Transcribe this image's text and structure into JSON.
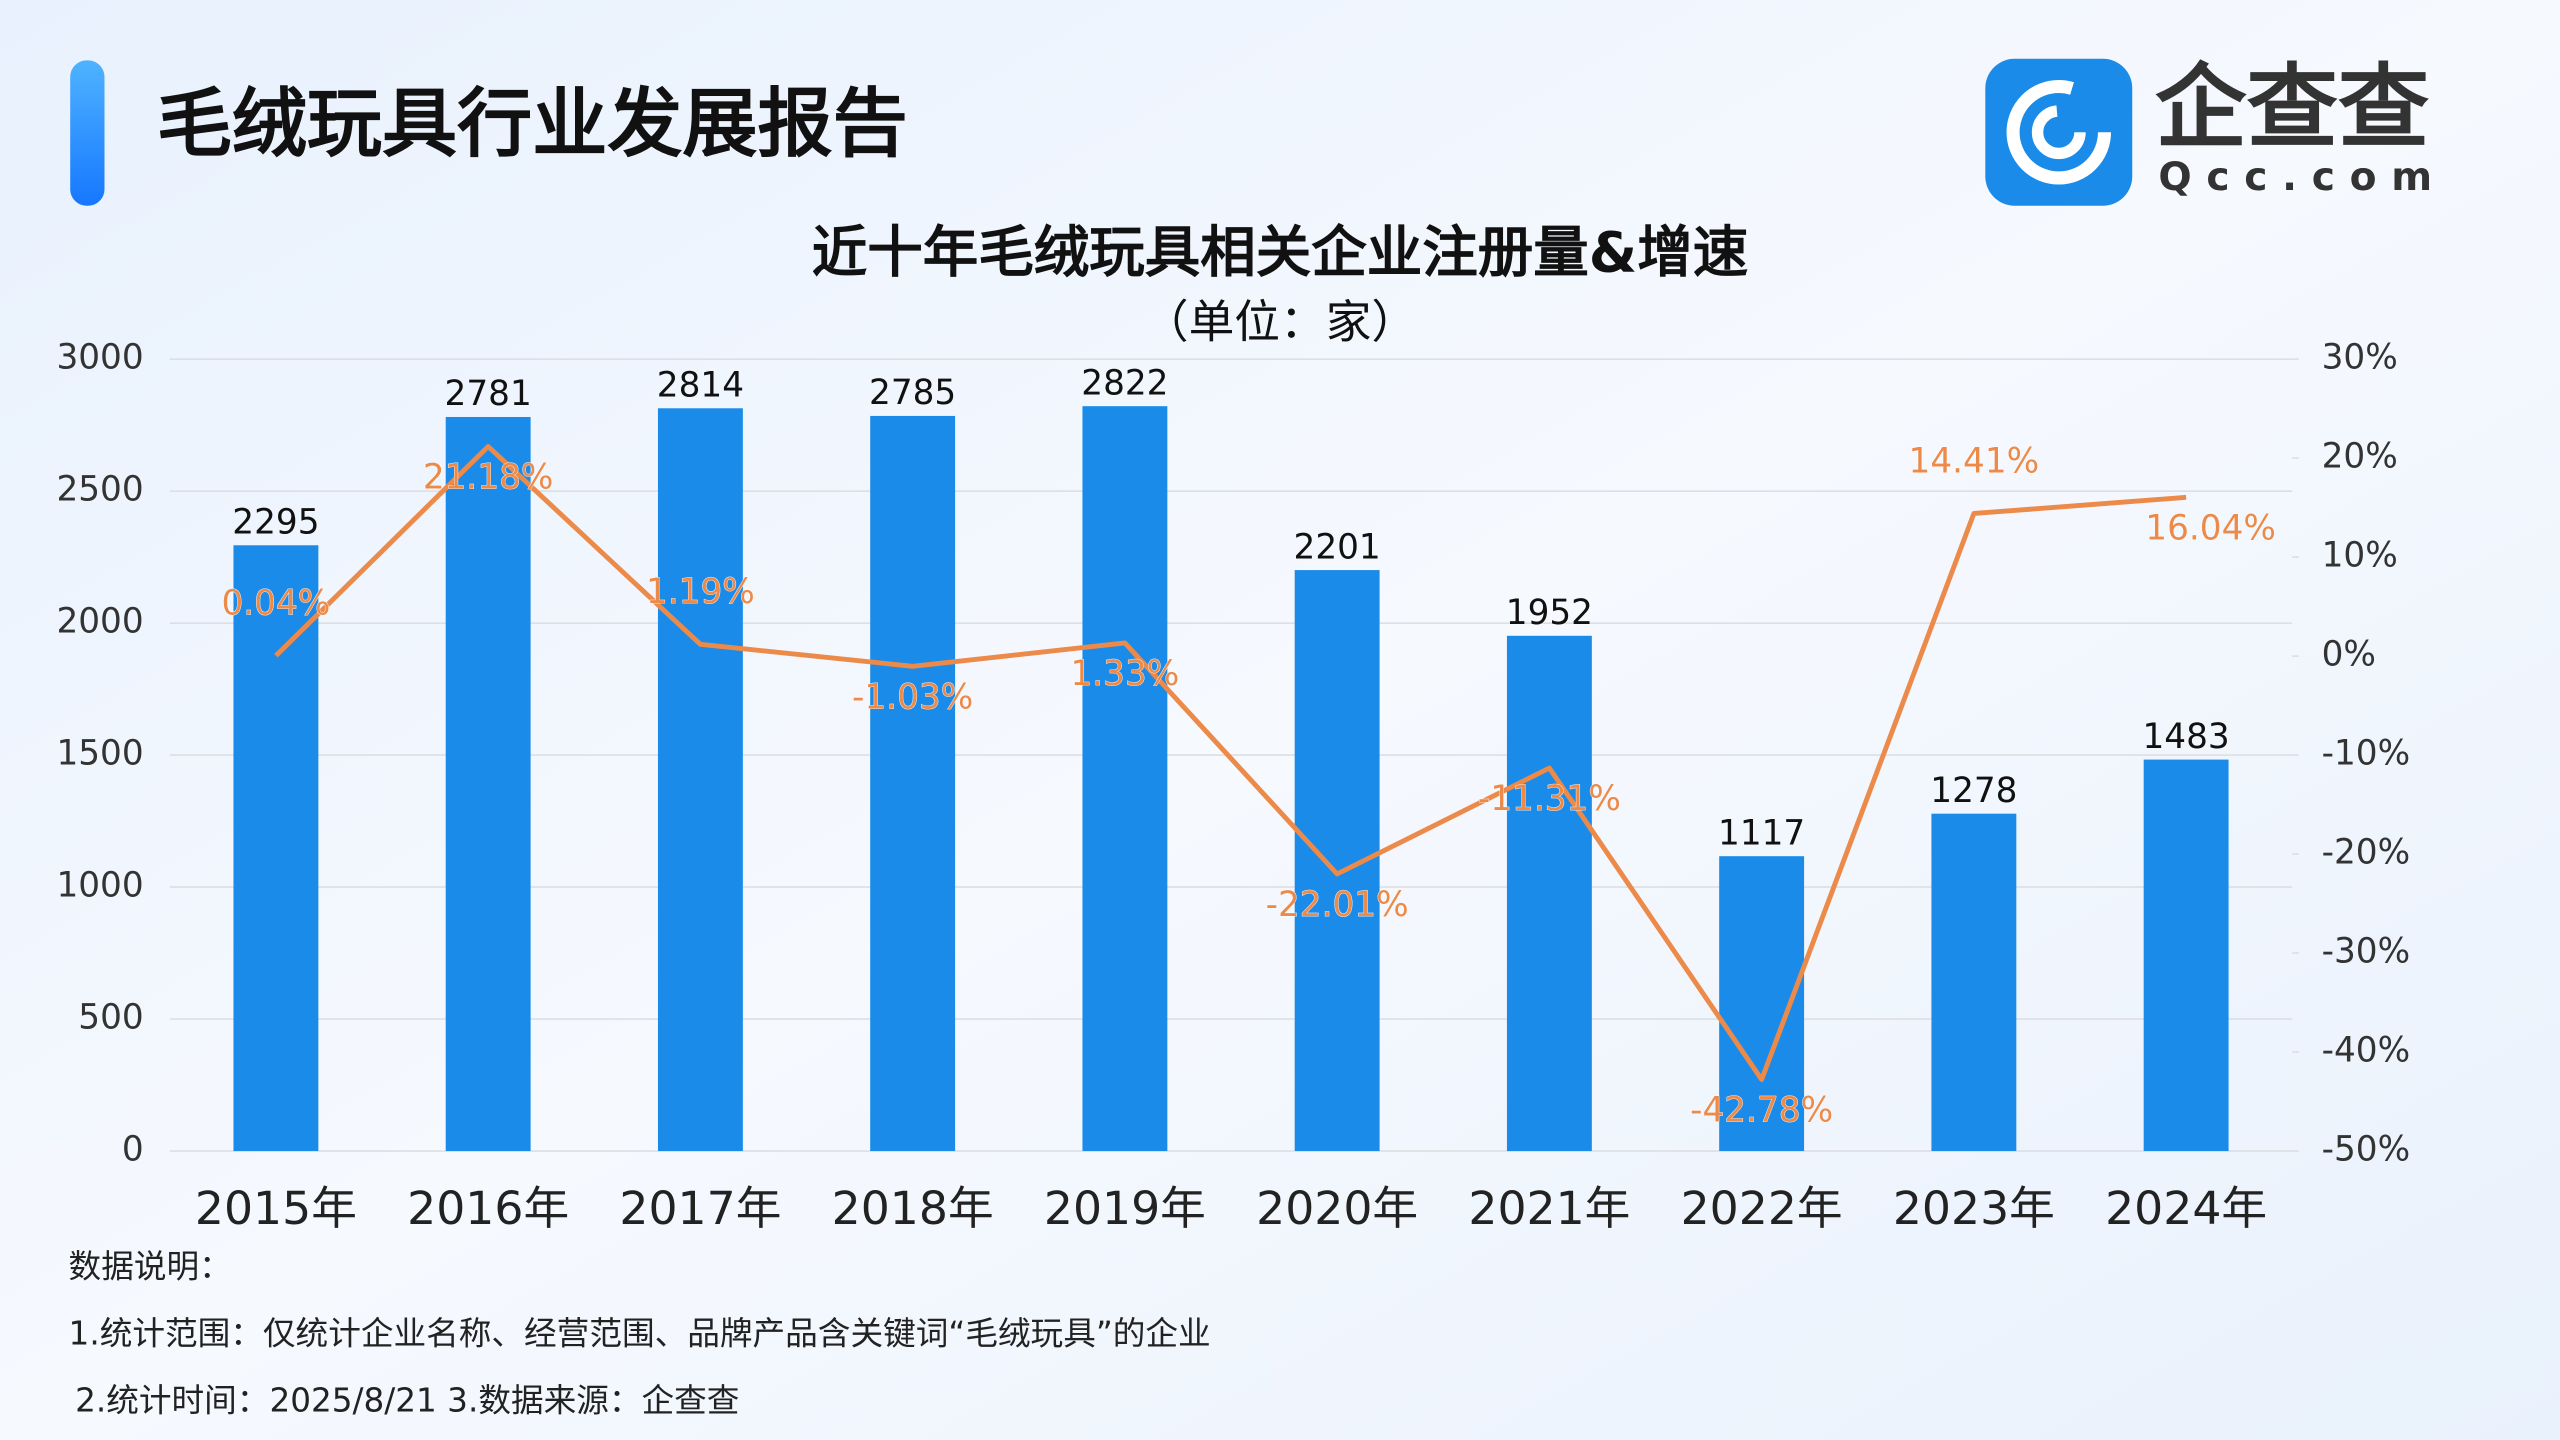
{
  "header": {
    "title": "毛绒玩具行业发展报告",
    "logo_text": "企查查",
    "logo_subtext": "Qcc.com"
  },
  "chart_data": {
    "type": "bar",
    "title": "近十年毛绒玩具相关企业注册量&增速",
    "subtitle": "（单位：家）",
    "categories": [
      "2015年",
      "2016年",
      "2017年",
      "2018年",
      "2019年",
      "2020年",
      "2021年",
      "2022年",
      "2023年",
      "2024年"
    ],
    "series": [
      {
        "name": "注册量",
        "type": "bar",
        "color": "#1a8be8",
        "values": [
          2295,
          2781,
          2814,
          2785,
          2822,
          2201,
          1952,
          1117,
          1278,
          1483
        ]
      },
      {
        "name": "增速",
        "type": "line",
        "axis": "y2",
        "color": "#ec8a4a",
        "values": [
          0.04,
          21.18,
          1.19,
          -1.03,
          1.33,
          -22.01,
          -11.31,
          -42.78,
          14.41,
          16.04
        ],
        "value_labels": [
          "0.04%",
          "21.18%",
          "1.19%",
          "-1.03%",
          "1.33%",
          "-22.01%",
          "-11.31%",
          "-42.78%",
          "14.41%",
          "16.04%"
        ]
      }
    ],
    "ylim": [
      0,
      3000
    ],
    "yticks": [
      0,
      500,
      1000,
      1500,
      2000,
      2500,
      3000
    ],
    "y2lim": [
      -50,
      30
    ],
    "y2ticks": [
      {
        "value": -50,
        "label": "-50%"
      },
      {
        "value": -40,
        "label": "-40%"
      },
      {
        "value": -30,
        "label": "-30%"
      },
      {
        "value": -20,
        "label": "-20%"
      },
      {
        "value": -10,
        "label": "-10%"
      },
      {
        "value": 0,
        "label": "0%"
      },
      {
        "value": 10,
        "label": "10%"
      },
      {
        "value": 20,
        "label": "20%"
      },
      {
        "value": 30,
        "label": "30%"
      }
    ],
    "grid": true
  },
  "notes": [
    "数据说明：",
    "1.统计范围：仅统计企业名称、经营范围、品牌产品含关键词“毛绒玩具”的企业",
    "2.统计时间：2025/8/21 3.数据来源：企查查"
  ]
}
